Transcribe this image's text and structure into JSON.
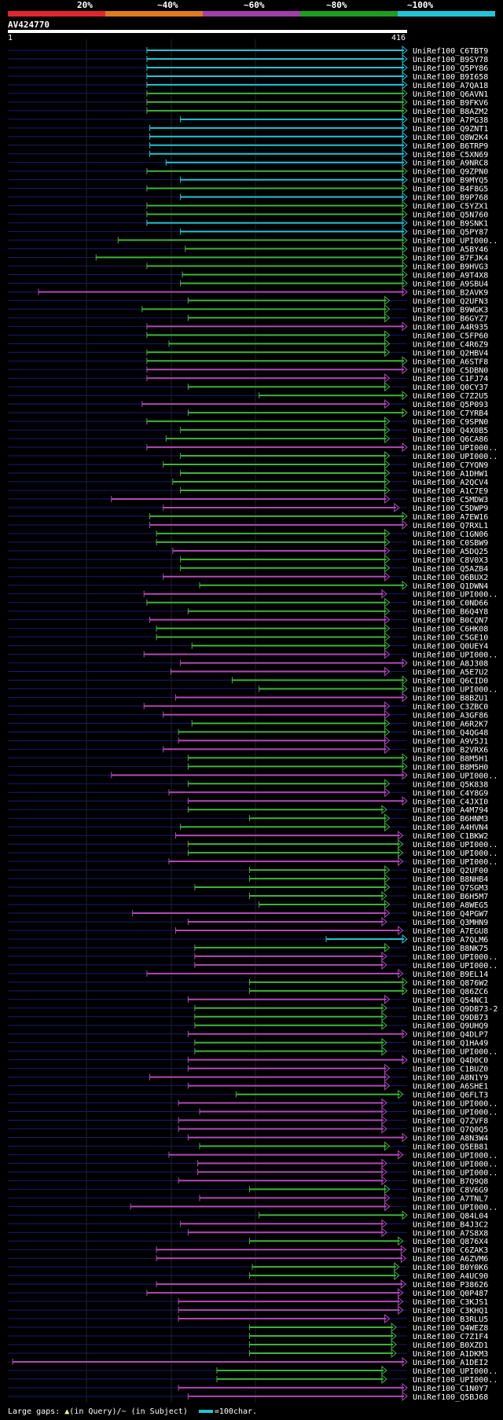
{
  "legend": {
    "labels": [
      "20%",
      "~40%",
      "~60%",
      "~80%",
      "~100%"
    ],
    "colors": [
      "#e0262f",
      "#e07a1c",
      "#a23ea8",
      "#1e9e1e",
      "#22c4d6"
    ]
  },
  "query": {
    "id": "AV424770",
    "start": "1",
    "end": "416"
  },
  "footer": {
    "gaps_label": "Large gaps:",
    "in_query": "(in Query)/",
    "in_subject": "(in Subject)",
    "scale_label": "=100char."
  },
  "chart_data": {
    "type": "alignment-overview",
    "query_length": 416,
    "hits": [
      {
        "name": "UniRef100_C6TBT9",
        "start": 145,
        "end": 432,
        "identity": "100"
      },
      {
        "name": "UniRef100_B9SY78",
        "start": 145,
        "end": 432,
        "identity": "100"
      },
      {
        "name": "UniRef100_Q5PY86",
        "start": 145,
        "end": 432,
        "identity": "100"
      },
      {
        "name": "UniRef100_B9I658",
        "start": 145,
        "end": 432,
        "identity": "100"
      },
      {
        "name": "UniRef100_A7QA18",
        "start": 145,
        "end": 432,
        "identity": "100"
      },
      {
        "name": "UniRef100_Q6AVN1",
        "start": 145,
        "end": 432,
        "identity": "80"
      },
      {
        "name": "UniRef100_B9FKV6",
        "start": 145,
        "end": 432,
        "identity": "80"
      },
      {
        "name": "UniRef100_B8AZM2",
        "start": 145,
        "end": 432,
        "identity": "80"
      },
      {
        "name": "UniRef100_A7PG38",
        "start": 180,
        "end": 432,
        "identity": "100"
      },
      {
        "name": "UniRef100_Q9ZNT1",
        "start": 148,
        "end": 432,
        "identity": "100"
      },
      {
        "name": "UniRef100_Q8W2K4",
        "start": 148,
        "end": 432,
        "identity": "100"
      },
      {
        "name": "UniRef100_B6TRP9",
        "start": 148,
        "end": 432,
        "identity": "100"
      },
      {
        "name": "UniRef100_C5XN69",
        "start": 148,
        "end": 432,
        "identity": "100"
      },
      {
        "name": "UniRef100_A9NRC8",
        "start": 165,
        "end": 432,
        "identity": "100"
      },
      {
        "name": "UniRef100_Q9ZPN0",
        "start": 145,
        "end": 432,
        "identity": "80"
      },
      {
        "name": "UniRef100_B9MYQ5",
        "start": 180,
        "end": 432,
        "identity": "100"
      },
      {
        "name": "UniRef100_B4F8G5",
        "start": 145,
        "end": 432,
        "identity": "80"
      },
      {
        "name": "UniRef100_B9P768",
        "start": 180,
        "end": 432,
        "identity": "100"
      },
      {
        "name": "UniRef100_C5YZX1",
        "start": 145,
        "end": 432,
        "identity": "80"
      },
      {
        "name": "UniRef100_Q5N760",
        "start": 145,
        "end": 432,
        "identity": "80"
      },
      {
        "name": "UniRef100_B9SNK1",
        "start": 145,
        "end": 432,
        "identity": "100"
      },
      {
        "name": "UniRef100_Q5PY87",
        "start": 180,
        "end": 432,
        "identity": "100"
      },
      {
        "name": "UniRef100_UPI000..",
        "start": 115,
        "end": 432,
        "identity": "80"
      },
      {
        "name": "UniRef100_A5BY46",
        "start": 185,
        "end": 432,
        "identity": "80"
      },
      {
        "name": "UniRef100_B7FJK4",
        "start": 92,
        "end": 432,
        "identity": "80"
      },
      {
        "name": "UniRef100_B9HVG3",
        "start": 145,
        "end": 432,
        "identity": "80"
      },
      {
        "name": "UniRef100_A9T4X8",
        "start": 182,
        "end": 432,
        "identity": "80"
      },
      {
        "name": "UniRef100_A9SBU4",
        "start": 180,
        "end": 425,
        "identity": "80"
      },
      {
        "name": "UniRef100_B2AVK9",
        "start": 32,
        "end": 432,
        "identity": "60"
      },
      {
        "name": "UniRef100_Q2UFN3",
        "start": 188,
        "end": 398,
        "identity": "80"
      },
      {
        "name": "UniRef100_B9WGK3",
        "start": 140,
        "end": 398,
        "identity": "80"
      },
      {
        "name": "UniRef100_B6GYZ7",
        "start": 188,
        "end": 398,
        "identity": "80"
      },
      {
        "name": "UniRef100_A4R935",
        "start": 145,
        "end": 432,
        "identity": "60"
      },
      {
        "name": "UniRef100_C5FP60",
        "start": 145,
        "end": 398,
        "identity": "80"
      },
      {
        "name": "UniRef100_C4R6Z9",
        "start": 168,
        "end": 398,
        "identity": "80"
      },
      {
        "name": "UniRef100_Q2HBV4",
        "start": 145,
        "end": 398,
        "identity": "80"
      },
      {
        "name": "UniRef100_A6STF8",
        "start": 145,
        "end": 432,
        "identity": "80"
      },
      {
        "name": "UniRef100_C5DBN0",
        "start": 145,
        "end": 432,
        "identity": "60"
      },
      {
        "name": "UniRef100_C1FJ74",
        "start": 145,
        "end": 398,
        "identity": "60"
      },
      {
        "name": "UniRef100_Q0CY37",
        "start": 188,
        "end": 398,
        "identity": "80"
      },
      {
        "name": "UniRef100_C7Z2U5",
        "start": 262,
        "end": 432,
        "identity": "80"
      },
      {
        "name": "UniRef100_Q5P093",
        "start": 140,
        "end": 398,
        "identity": "60"
      },
      {
        "name": "UniRef100_C7YRB4",
        "start": 188,
        "end": 432,
        "identity": "80"
      },
      {
        "name": "UniRef100_C9SPN0",
        "start": 145,
        "end": 398,
        "identity": "80"
      },
      {
        "name": "UniRef100_Q4X0B5",
        "start": 180,
        "end": 398,
        "identity": "80"
      },
      {
        "name": "UniRef100_Q6CA86",
        "start": 165,
        "end": 398,
        "identity": "80"
      },
      {
        "name": "UniRef100_UPI000..",
        "start": 145,
        "end": 432,
        "identity": "60"
      },
      {
        "name": "UniRef100_UPI000..",
        "start": 180,
        "end": 398,
        "identity": "80"
      },
      {
        "name": "UniRef100_C7YQN9",
        "start": 162,
        "end": 398,
        "identity": "80"
      },
      {
        "name": "UniRef100_A1DHW1",
        "start": 180,
        "end": 398,
        "identity": "80"
      },
      {
        "name": "UniRef100_A2QCV4",
        "start": 172,
        "end": 398,
        "identity": "80"
      },
      {
        "name": "UniRef100_A1C7E9",
        "start": 180,
        "end": 398,
        "identity": "80"
      },
      {
        "name": "UniRef100_C5MDW3",
        "start": 108,
        "end": 398,
        "identity": "60"
      },
      {
        "name": "UniRef100_C5DWP9",
        "start": 162,
        "end": 408,
        "identity": "60"
      },
      {
        "name": "UniRef100_A7EW16",
        "start": 148,
        "end": 420,
        "identity": "80"
      },
      {
        "name": "UniRef100_Q7RXL1",
        "start": 148,
        "end": 420,
        "identity": "60"
      },
      {
        "name": "UniRef100_C1GN06",
        "start": 155,
        "end": 398,
        "identity": "80"
      },
      {
        "name": "UniRef100_C0SBW9",
        "start": 155,
        "end": 398,
        "identity": "80"
      },
      {
        "name": "UniRef100_A5DQ25",
        "start": 172,
        "end": 398,
        "identity": "60"
      },
      {
        "name": "UniRef100_C8V0X3",
        "start": 180,
        "end": 398,
        "identity": "80"
      },
      {
        "name": "UniRef100_Q5AZB4",
        "start": 180,
        "end": 398,
        "identity": "80"
      },
      {
        "name": "UniRef100_Q6BUX2",
        "start": 162,
        "end": 398,
        "identity": "60"
      },
      {
        "name": "UniRef100_Q1DWN4",
        "start": 200,
        "end": 418,
        "identity": "80"
      },
      {
        "name": "UniRef100_UPI000..",
        "start": 142,
        "end": 395,
        "identity": "60"
      },
      {
        "name": "UniRef100_C0ND66",
        "start": 145,
        "end": 398,
        "identity": "80"
      },
      {
        "name": "UniRef100_B6Q4Y8",
        "start": 188,
        "end": 398,
        "identity": "80"
      },
      {
        "name": "UniRef100_B0CQN7",
        "start": 148,
        "end": 398,
        "identity": "60"
      },
      {
        "name": "UniRef100_C6HK08",
        "start": 155,
        "end": 398,
        "identity": "80"
      },
      {
        "name": "UniRef100_C5GE10",
        "start": 155,
        "end": 398,
        "identity": "80"
      },
      {
        "name": "UniRef100_Q0UEY4",
        "start": 192,
        "end": 398,
        "identity": "80"
      },
      {
        "name": "UniRef100_UPI000..",
        "start": 142,
        "end": 398,
        "identity": "60"
      },
      {
        "name": "UniRef100_A8J308",
        "start": 180,
        "end": 432,
        "identity": "60"
      },
      {
        "name": "UniRef100_A5E7U2",
        "start": 170,
        "end": 398,
        "identity": "60"
      },
      {
        "name": "UniRef100_Q6CID0",
        "start": 234,
        "end": 418,
        "identity": "80"
      },
      {
        "name": "UniRef100_UPI000..",
        "start": 262,
        "end": 432,
        "identity": "80"
      },
      {
        "name": "UniRef100_B8BZU1",
        "start": 175,
        "end": 432,
        "identity": "60"
      },
      {
        "name": "UniRef100_C3ZBC0",
        "start": 142,
        "end": 398,
        "identity": "60"
      },
      {
        "name": "UniRef100_A3GF86",
        "start": 162,
        "end": 398,
        "identity": "60"
      },
      {
        "name": "UniRef100_A6R2K7",
        "start": 192,
        "end": 398,
        "identity": "80"
      },
      {
        "name": "UniRef100_Q4QG48",
        "start": 178,
        "end": 398,
        "identity": "80"
      },
      {
        "name": "UniRef100_A9V5J1",
        "start": 178,
        "end": 398,
        "identity": "60"
      },
      {
        "name": "UniRef100_B2VRX6",
        "start": 162,
        "end": 398,
        "identity": "60"
      },
      {
        "name": "UniRef100_B8M5H1",
        "start": 188,
        "end": 418,
        "identity": "80"
      },
      {
        "name": "UniRef100_B8M5H0",
        "start": 188,
        "end": 418,
        "identity": "80"
      },
      {
        "name": "UniRef100_UPI000..",
        "start": 108,
        "end": 432,
        "identity": "60"
      },
      {
        "name": "UniRef100_Q5K838",
        "start": 188,
        "end": 398,
        "identity": "80"
      },
      {
        "name": "UniRef100_C4Y8G9",
        "start": 168,
        "end": 398,
        "identity": "60"
      },
      {
        "name": "UniRef100_C4JXI0",
        "start": 188,
        "end": 418,
        "identity": "60"
      },
      {
        "name": "UniRef100_A4M794",
        "start": 188,
        "end": 395,
        "identity": "80"
      },
      {
        "name": "UniRef100_B6HNM3",
        "start": 252,
        "end": 398,
        "identity": "80"
      },
      {
        "name": "UniRef100_A4HVN4",
        "start": 180,
        "end": 398,
        "identity": "80"
      },
      {
        "name": "UniRef100_C1BKW2",
        "start": 175,
        "end": 412,
        "identity": "60"
      },
      {
        "name": "UniRef100_UPI000..",
        "start": 188,
        "end": 412,
        "identity": "80"
      },
      {
        "name": "UniRef100_UPI000..",
        "start": 188,
        "end": 412,
        "identity": "80"
      },
      {
        "name": "UniRef100_UPI000..",
        "start": 168,
        "end": 412,
        "identity": "60"
      },
      {
        "name": "UniRef100_Q2UF00",
        "start": 252,
        "end": 398,
        "identity": "80"
      },
      {
        "name": "UniRef100_B8NHB4",
        "start": 252,
        "end": 398,
        "identity": "80"
      },
      {
        "name": "UniRef100_Q7SGM3",
        "start": 195,
        "end": 398,
        "identity": "80"
      },
      {
        "name": "UniRef100_B6H5M7",
        "start": 252,
        "end": 395,
        "identity": "80"
      },
      {
        "name": "UniRef100_A8WEG5",
        "start": 262,
        "end": 398,
        "identity": "80"
      },
      {
        "name": "UniRef100_Q4PGW7",
        "start": 130,
        "end": 398,
        "identity": "60"
      },
      {
        "name": "UniRef100_Q3MHN9",
        "start": 188,
        "end": 395,
        "identity": "60"
      },
      {
        "name": "UniRef100_A7EGU8",
        "start": 175,
        "end": 412,
        "identity": "60"
      },
      {
        "name": "UniRef100_A7QLM6",
        "start": 332,
        "end": 432,
        "identity": "100"
      },
      {
        "name": "UniRef100_B8NK75",
        "start": 195,
        "end": 398,
        "identity": "80"
      },
      {
        "name": "UniRef100_UPI000..",
        "start": 195,
        "end": 395,
        "identity": "60"
      },
      {
        "name": "UniRef100_UPI000..",
        "start": 195,
        "end": 395,
        "identity": "60"
      },
      {
        "name": "UniRef100_B9EL14",
        "start": 145,
        "end": 412,
        "identity": "60"
      },
      {
        "name": "UniRef100_Q876W2",
        "start": 252,
        "end": 432,
        "identity": "80"
      },
      {
        "name": "UniRef100_Q86ZC6",
        "start": 252,
        "end": 432,
        "identity": "80"
      },
      {
        "name": "UniRef100_Q54NC1",
        "start": 188,
        "end": 398,
        "identity": "60"
      },
      {
        "name": "UniRef100_Q9DB73-2",
        "start": 195,
        "end": 395,
        "identity": "80"
      },
      {
        "name": "UniRef100_Q9DB73",
        "start": 195,
        "end": 395,
        "identity": "80"
      },
      {
        "name": "UniRef100_Q9UHQ9",
        "start": 195,
        "end": 395,
        "identity": "80"
      },
      {
        "name": "UniRef100_Q4DLP7",
        "start": 188,
        "end": 425,
        "identity": "60"
      },
      {
        "name": "UniRef100_Q1HA49",
        "start": 195,
        "end": 395,
        "identity": "80"
      },
      {
        "name": "UniRef100_UPI000..",
        "start": 195,
        "end": 395,
        "identity": "80"
      },
      {
        "name": "UniRef100_Q4D0C0",
        "start": 188,
        "end": 425,
        "identity": "60"
      },
      {
        "name": "UniRef100_C1BUZ0",
        "start": 188,
        "end": 398,
        "identity": "60"
      },
      {
        "name": "UniRef100_A8N1Y9",
        "start": 148,
        "end": 398,
        "identity": "60"
      },
      {
        "name": "UniRef100_A6SHE1",
        "start": 188,
        "end": 398,
        "identity": "60"
      },
      {
        "name": "UniRef100_Q6FLT3",
        "start": 238,
        "end": 412,
        "identity": "80"
      },
      {
        "name": "UniRef100_UPI000..",
        "start": 178,
        "end": 395,
        "identity": "60"
      },
      {
        "name": "UniRef100_UPI000..",
        "start": 200,
        "end": 395,
        "identity": "60"
      },
      {
        "name": "UniRef100_Q7ZVF8",
        "start": 178,
        "end": 395,
        "identity": "60"
      },
      {
        "name": "UniRef100_Q7Q0Q5",
        "start": 178,
        "end": 395,
        "identity": "60"
      },
      {
        "name": "UniRef100_A8N3W4",
        "start": 188,
        "end": 425,
        "identity": "60"
      },
      {
        "name": "UniRef100_Q5EB81",
        "start": 200,
        "end": 398,
        "identity": "80"
      },
      {
        "name": "UniRef100_UPI000..",
        "start": 168,
        "end": 412,
        "identity": "60"
      },
      {
        "name": "UniRef100_UPI000..",
        "start": 198,
        "end": 395,
        "identity": "60"
      },
      {
        "name": "UniRef100_UPI000..",
        "start": 198,
        "end": 395,
        "identity": "60"
      },
      {
        "name": "UniRef100_B7Q9Q8",
        "start": 178,
        "end": 395,
        "identity": "60"
      },
      {
        "name": "UniRef100_C8V6G9",
        "start": 252,
        "end": 398,
        "identity": "80"
      },
      {
        "name": "UniRef100_A7TNL7",
        "start": 200,
        "end": 398,
        "identity": "60"
      },
      {
        "name": "UniRef100_UPI000..",
        "start": 128,
        "end": 398,
        "identity": "60"
      },
      {
        "name": "UniRef100_Q84L04",
        "start": 262,
        "end": 418,
        "identity": "80"
      },
      {
        "name": "UniRef100_B4J3C2",
        "start": 180,
        "end": 395,
        "identity": "60"
      },
      {
        "name": "UniRef100_A7S8X8",
        "start": 188,
        "end": 395,
        "identity": "60"
      },
      {
        "name": "UniRef100_Q876X4",
        "start": 252,
        "end": 412,
        "identity": "80"
      },
      {
        "name": "UniRef100_C6ZAK3",
        "start": 155,
        "end": 415,
        "identity": "60"
      },
      {
        "name": "UniRef100_A6ZVM6",
        "start": 155,
        "end": 415,
        "identity": "60"
      },
      {
        "name": "UniRef100_B0Y0K6",
        "start": 255,
        "end": 408,
        "identity": "80"
      },
      {
        "name": "UniRef100_A4UC90",
        "start": 252,
        "end": 408,
        "identity": "80"
      },
      {
        "name": "UniRef100_P38626",
        "start": 155,
        "end": 415,
        "identity": "60"
      },
      {
        "name": "UniRef100_Q0P487",
        "start": 145,
        "end": 412,
        "identity": "60"
      },
      {
        "name": "UniRef100_C3KJS1",
        "start": 178,
        "end": 412,
        "identity": "60"
      },
      {
        "name": "UniRef100_C3KHQ1",
        "start": 178,
        "end": 412,
        "identity": "60"
      },
      {
        "name": "UniRef100_B3RLU5",
        "start": 178,
        "end": 398,
        "identity": "60"
      },
      {
        "name": "UniRef100_Q4WEZ8",
        "start": 252,
        "end": 405,
        "identity": "80"
      },
      {
        "name": "UniRef100_C7Z1F4",
        "start": 252,
        "end": 405,
        "identity": "80"
      },
      {
        "name": "UniRef100_B0XZD1",
        "start": 252,
        "end": 405,
        "identity": "80"
      },
      {
        "name": "UniRef100_A1DKM3",
        "start": 252,
        "end": 405,
        "identity": "80"
      },
      {
        "name": "UniRef100_A1DEI2",
        "start": 5,
        "end": 432,
        "identity": "60"
      },
      {
        "name": "UniRef100_UPI000..",
        "start": 218,
        "end": 395,
        "identity": "80"
      },
      {
        "name": "UniRef100_UPI000..",
        "start": 218,
        "end": 395,
        "identity": "80"
      },
      {
        "name": "UniRef100_C1N0Y7",
        "start": 178,
        "end": 432,
        "identity": "60"
      },
      {
        "name": "UniRef100_Q5BJ68",
        "start": 188,
        "end": 432,
        "identity": "60"
      }
    ]
  }
}
